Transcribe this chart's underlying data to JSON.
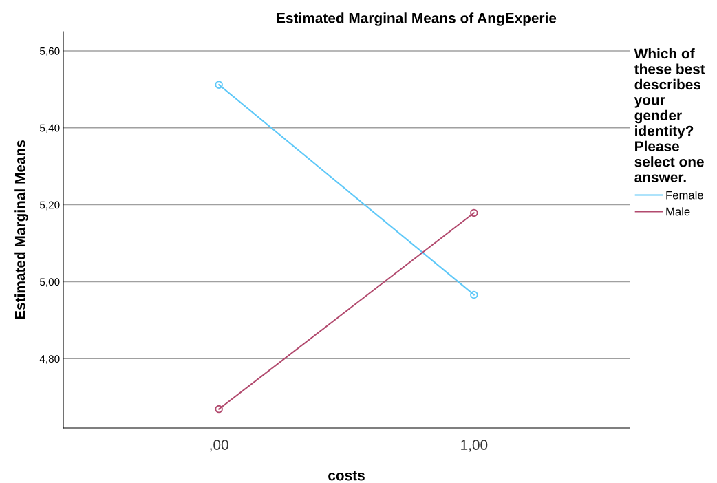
{
  "chart_data": {
    "type": "line",
    "title": "Estimated Marginal Means of AngExperie",
    "xlabel": "costs",
    "ylabel": "Estimated Marginal Means",
    "legend_title": "Which of\nthese best\ndescribes\nyour\ngender\nidentity?\nPlease\nselect one\nanswer.",
    "categories": [
      ",00",
      "1,00"
    ],
    "series": [
      {
        "name": "Female",
        "color": "#5ec8f8",
        "values": [
          5.512,
          4.966
        ]
      },
      {
        "name": "Male",
        "color": "#b24a6e",
        "values": [
          4.669,
          5.179
        ]
      }
    ],
    "ylim": [
      4.62,
      5.65
    ],
    "yticks": [
      {
        "value": 4.8,
        "label": "4,80"
      },
      {
        "value": 5.0,
        "label": "5,00"
      },
      {
        "value": 5.2,
        "label": "5,20"
      },
      {
        "value": 5.4,
        "label": "5,40"
      },
      {
        "value": 5.6,
        "label": "5,60"
      }
    ],
    "grid": "y",
    "legend": "right",
    "marker": "circle",
    "line_style": "solid"
  }
}
